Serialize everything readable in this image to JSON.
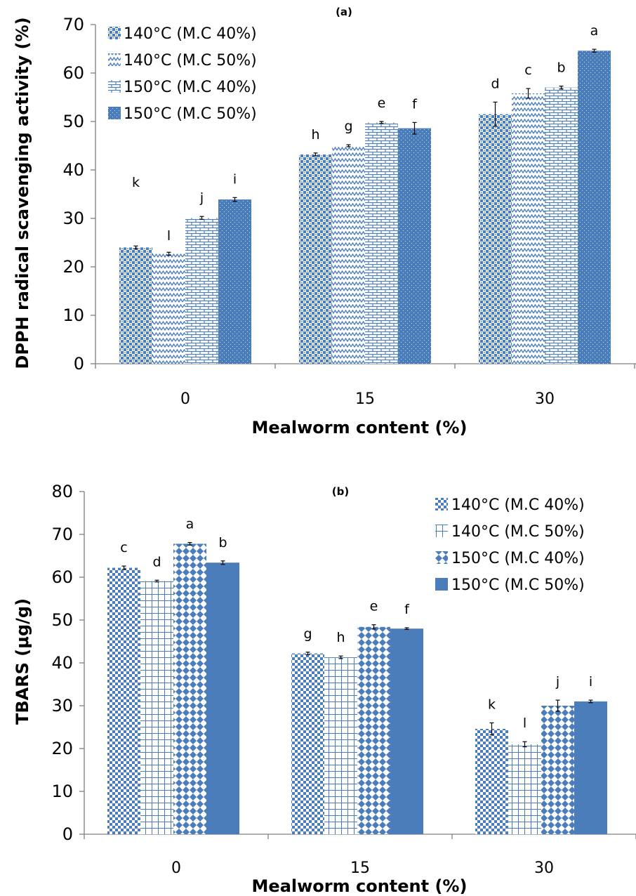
{
  "colors": {
    "bar": "#4a7dba",
    "bar_light": "#ffffff",
    "axis": "#808080",
    "error": "#000000"
  },
  "chart_data": [
    {
      "type": "bar",
      "title": "(a)",
      "xlabel": "Mealworm content (%)",
      "ylabel": "DPPH radical scavenging activity (%)",
      "categories": [
        "0",
        "15",
        "30"
      ],
      "ylim": [
        0,
        70
      ],
      "yticks": [
        "0",
        "10",
        "20",
        "30",
        "40",
        "50",
        "60",
        "70"
      ],
      "legend_position": "top-left",
      "grid": false,
      "series": [
        {
          "name": "140°C (M.C 40%)",
          "pattern": "checker-weave",
          "values": [
            24.0,
            43.2,
            51.5
          ],
          "errors": [
            0.3,
            0.3,
            2.5
          ],
          "letters": [
            "k",
            "h",
            "d"
          ]
        },
        {
          "name": "140°C (M.C 50%)",
          "pattern": "zigzag",
          "values": [
            22.7,
            45.0,
            55.8
          ],
          "errors": [
            0.3,
            0.2,
            1.0
          ],
          "letters": [
            "l",
            "g",
            "c"
          ]
        },
        {
          "name": "150°C (M.C 40%)",
          "pattern": "brick",
          "values": [
            30.1,
            49.8,
            57.0
          ],
          "errors": [
            0.3,
            0.2,
            0.3
          ],
          "letters": [
            "j",
            "e",
            "b"
          ]
        },
        {
          "name": "150°C (M.C 50%)",
          "pattern": "dotted-solid",
          "values": [
            33.9,
            48.6,
            64.6
          ],
          "errors": [
            0.4,
            1.2,
            0.3
          ],
          "letters": [
            "i",
            "f",
            "a"
          ]
        }
      ]
    },
    {
      "type": "bar",
      "title": "(b)",
      "xlabel": "Mealworm content (%)",
      "ylabel": "TBARS (μg/g)",
      "categories": [
        "0",
        "15",
        "30"
      ],
      "ylim": [
        0,
        80
      ],
      "yticks": [
        "0",
        "10",
        "20",
        "30",
        "40",
        "50",
        "60",
        "70",
        "80"
      ],
      "legend_position": "top-right",
      "grid": false,
      "series": [
        {
          "name": "140°C (M.C 40%)",
          "pattern": "checker",
          "values": [
            62.2,
            42.2,
            24.6
          ],
          "errors": [
            0.4,
            0.3,
            1.4
          ],
          "letters": [
            "c",
            "g",
            "k"
          ]
        },
        {
          "name": "140°C (M.C 50%)",
          "pattern": "grid",
          "values": [
            59.1,
            41.3,
            21.0
          ],
          "errors": [
            0.2,
            0.3,
            0.6
          ],
          "letters": [
            "d",
            "h",
            "l"
          ]
        },
        {
          "name": "150°C (M.C 40%)",
          "pattern": "diamond",
          "values": [
            67.8,
            48.4,
            30.0
          ],
          "errors": [
            0.3,
            0.5,
            1.3
          ],
          "letters": [
            "a",
            "e",
            "j"
          ]
        },
        {
          "name": "150°C (M.C 50%)",
          "pattern": "solid",
          "values": [
            63.4,
            48.0,
            31.0
          ],
          "errors": [
            0.4,
            0.2,
            0.3
          ],
          "letters": [
            "b",
            "f",
            "i"
          ]
        }
      ]
    }
  ]
}
